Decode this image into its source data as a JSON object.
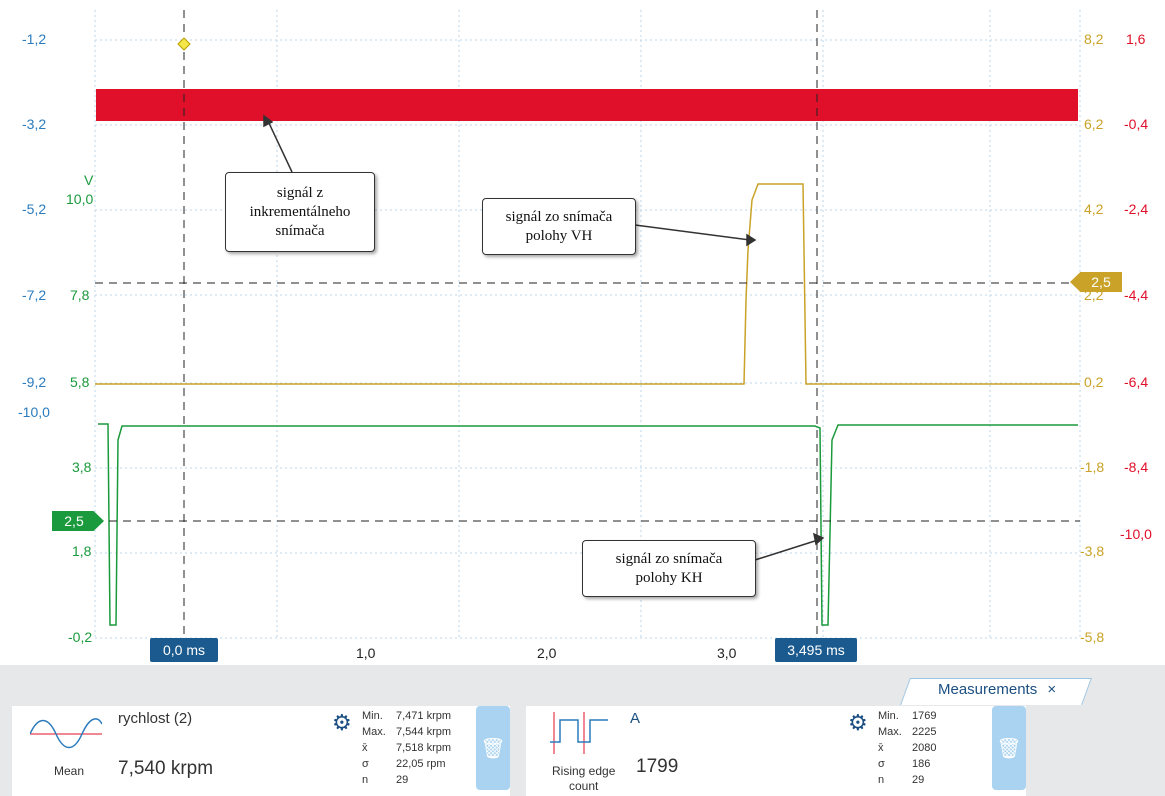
{
  "axes": {
    "left_blue": [
      "-1,2",
      "-3,2",
      "-5,2",
      "-7,2",
      "-9,2",
      "-10,0"
    ],
    "left_green": [
      "10,0",
      "7,8",
      "5,8",
      "3,8",
      "1,8",
      "-0,2"
    ],
    "left_green_unit": "V",
    "right_gold": [
      "8,2",
      "6,2",
      "4,2",
      "2,2",
      "0,2",
      "-1,8",
      "-3,8",
      "-5,8"
    ],
    "right_red": [
      "1,6",
      "-0,4",
      "-2,4",
      "-4,4",
      "-6,4",
      "-8,4",
      "-10,0"
    ],
    "x_ticks": [
      "1,0",
      "2,0",
      "3,0"
    ]
  },
  "markers": {
    "left_threshold": "2,5",
    "right_threshold": "2,5",
    "time_start": "0,0 ms",
    "time_end": "3,495 ms"
  },
  "callouts": {
    "incremental": "signál z\ninkrementálneho\nsnímača",
    "vh": "signál zo snímača\npolohy VH",
    "kh": "signál zo snímača\npolohy KH"
  },
  "measurements_tab": {
    "label": "Measurements",
    "close": "×"
  },
  "panel1": {
    "name": "rychlost (2)",
    "stat_label": "Mean",
    "value": "7,540 krpm",
    "stats": [
      {
        "k": "Min.",
        "v": "7,471 krpm"
      },
      {
        "k": "Max.",
        "v": "7,544 krpm"
      },
      {
        "k": "x̄",
        "v": "7,518 krpm"
      },
      {
        "k": "σ",
        "v": "22,05 rpm"
      },
      {
        "k": "n",
        "v": "29"
      }
    ]
  },
  "panel2": {
    "name": "A",
    "stat_label": "Rising edge\ncount",
    "value": "1799",
    "stats": [
      {
        "k": "Min.",
        "v": "1769"
      },
      {
        "k": "Max.",
        "v": "2225"
      },
      {
        "k": "x̄",
        "v": "2080"
      },
      {
        "k": "σ",
        "v": "186"
      },
      {
        "k": "n",
        "v": "29"
      }
    ]
  },
  "colors": {
    "blue_axis": "#2b7bbd",
    "green_trace": "#1a9a3c",
    "gold_trace": "#c9a227",
    "red_trace": "#e0102a",
    "marker_blue": "#1b5a8e"
  }
}
